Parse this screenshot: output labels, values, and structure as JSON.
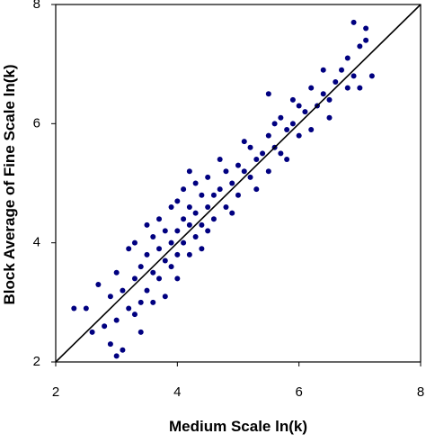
{
  "chart_data": {
    "type": "scatter",
    "x_label": "Medium Scale ln(k)",
    "y_label": "Block Average of Fine Scale ln(k)",
    "xlim": [
      2,
      8
    ],
    "ylim": [
      2,
      8
    ],
    "xticks": [
      2,
      4,
      6,
      8
    ],
    "yticks": [
      2,
      4,
      6,
      8
    ],
    "grid": false,
    "reference_line": {
      "x": [
        2,
        8
      ],
      "y": [
        2,
        8
      ],
      "color": "#000000"
    },
    "series": [
      {
        "color": "#000080",
        "x": [
          2.3,
          2.6,
          2.7,
          2.8,
          2.9,
          2.9,
          3.0,
          3.0,
          3.1,
          3.1,
          3.2,
          3.2,
          3.3,
          3.3,
          3.3,
          3.4,
          3.4,
          3.5,
          3.5,
          3.5,
          3.6,
          3.6,
          3.6,
          3.7,
          3.7,
          3.7,
          3.8,
          3.8,
          3.8,
          3.9,
          3.9,
          3.9,
          4.0,
          4.0,
          4.0,
          4.0,
          4.1,
          4.1,
          4.1,
          4.2,
          4.2,
          4.2,
          4.3,
          4.3,
          4.3,
          4.4,
          4.4,
          4.4,
          4.5,
          4.5,
          4.5,
          4.6,
          4.6,
          4.7,
          4.7,
          4.8,
          4.8,
          4.9,
          4.9,
          5.0,
          5.0,
          5.1,
          5.1,
          5.2,
          5.2,
          5.3,
          5.3,
          5.4,
          5.5,
          5.5,
          5.6,
          5.6,
          5.7,
          5.7,
          5.8,
          5.8,
          5.9,
          5.9,
          6.0,
          6.0,
          6.1,
          6.2,
          6.2,
          6.3,
          6.4,
          6.4,
          6.5,
          6.5,
          6.6,
          6.7,
          6.8,
          6.8,
          6.9,
          7.0,
          7.0,
          7.1,
          7.2,
          3.0,
          2.5,
          3.4,
          4.2,
          5.5,
          6.9,
          7.1
        ],
        "values": [
          2.9,
          2.5,
          3.3,
          2.6,
          3.1,
          2.3,
          2.7,
          3.5,
          2.2,
          3.2,
          3.9,
          2.9,
          3.4,
          2.8,
          4.0,
          3.6,
          3.0,
          3.8,
          3.2,
          4.3,
          3.5,
          4.1,
          3.0,
          3.9,
          4.4,
          3.4,
          3.7,
          4.2,
          3.1,
          4.0,
          4.6,
          3.6,
          4.2,
          3.8,
          4.7,
          3.4,
          4.4,
          4.0,
          4.9,
          4.3,
          3.8,
          4.6,
          4.5,
          4.1,
          5.0,
          4.3,
          4.8,
          3.9,
          4.6,
          4.2,
          5.1,
          4.8,
          4.4,
          4.9,
          5.4,
          4.6,
          5.2,
          5.0,
          4.5,
          5.3,
          4.8,
          5.2,
          5.7,
          5.1,
          5.6,
          5.4,
          4.9,
          5.5,
          5.8,
          5.2,
          5.6,
          6.0,
          5.5,
          6.1,
          5.9,
          5.4,
          6.0,
          6.4,
          5.8,
          6.3,
          6.2,
          5.9,
          6.6,
          6.3,
          6.5,
          6.9,
          6.4,
          6.1,
          6.7,
          6.9,
          6.6,
          7.1,
          6.8,
          7.3,
          6.6,
          7.4,
          6.8,
          2.1,
          2.9,
          2.5,
          5.2,
          6.5,
          7.7,
          7.6
        ]
      }
    ]
  }
}
